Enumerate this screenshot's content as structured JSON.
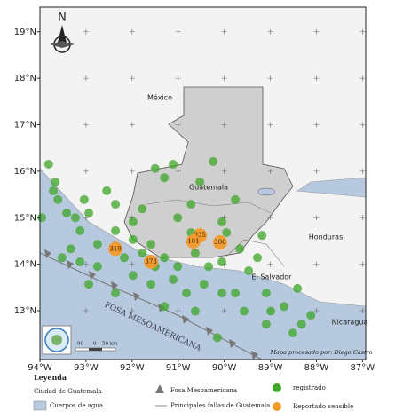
{
  "chart_data": {
    "type": "map",
    "xlim": [
      -94,
      -86.93
    ],
    "ylim": [
      11.95,
      19.53
    ],
    "xticks": [
      {
        "value": -94,
        "label": "94°W"
      },
      {
        "value": -93,
        "label": "93°W"
      },
      {
        "value": -92,
        "label": "92°W"
      },
      {
        "value": -91,
        "label": "91°W"
      },
      {
        "value": -90,
        "label": "90°W"
      },
      {
        "value": -89,
        "label": "89°W"
      },
      {
        "value": -88,
        "label": "88°W"
      },
      {
        "value": -87,
        "label": "87°W"
      }
    ],
    "yticks": [
      {
        "value": 13,
        "label": "13°N"
      },
      {
        "value": 14,
        "label": "14°N"
      },
      {
        "value": 15,
        "label": "15°N"
      },
      {
        "value": 16,
        "label": "16°N"
      },
      {
        "value": 17,
        "label": "17°N"
      },
      {
        "value": 18,
        "label": "18°N"
      },
      {
        "value": 19,
        "label": "19°N"
      }
    ],
    "series": [
      {
        "name": "registrado",
        "color": "#3fa62a",
        "x": [
          -93.81,
          -93.67,
          -93.71,
          -93.96,
          -93.42,
          -93.04,
          -92.94,
          -92.36,
          -92.55,
          -91.5,
          -91.3,
          -91.11,
          -90.24,
          -90.53,
          -91.78,
          -91.98,
          -91.01,
          -90.72,
          -90.05,
          -89.76,
          -89.95,
          -90.72,
          -93.13,
          -93.33,
          -92.75,
          -92.36,
          -93.52,
          -93.13,
          -92.75,
          -92.17,
          -91.78,
          -91.5,
          -91.3,
          -91.01,
          -90.63,
          -90.34,
          -90.05,
          -89.66,
          -89.28,
          -91.98,
          -91.59,
          -91.11,
          -90.82,
          -90.44,
          -90.05,
          -92.36,
          -92.94,
          -91.3,
          -90.63,
          -89.76,
          -89.57,
          -89.09,
          -88.99,
          -88.7,
          -88.41,
          -88.32,
          -88.12,
          -89.09,
          -90.15,
          -88.51,
          -89.47,
          -89.18,
          -91.98,
          -91.59,
          -93.61,
          -93.23
        ],
        "y": [
          16.15,
          15.77,
          15.58,
          15.0,
          15.1,
          15.39,
          15.1,
          15.29,
          15.58,
          16.06,
          15.86,
          16.15,
          16.21,
          15.77,
          15.19,
          14.91,
          15.0,
          15.29,
          14.91,
          15.39,
          14.68,
          14.68,
          14.72,
          14.33,
          14.43,
          14.72,
          14.14,
          14.05,
          13.95,
          14.14,
          14.24,
          13.95,
          14.14,
          13.95,
          14.24,
          13.95,
          14.05,
          14.33,
          14.14,
          13.76,
          13.57,
          13.67,
          13.38,
          13.57,
          13.38,
          13.38,
          13.57,
          13.09,
          12.99,
          13.38,
          12.99,
          13.38,
          12.99,
          13.09,
          13.48,
          12.71,
          12.9,
          12.71,
          12.42,
          12.52,
          13.86,
          14.62,
          14.53,
          14.43,
          15.39,
          15.0
        ]
      },
      {
        "name": "Reportado sensible",
        "color": "#f39a2b",
        "x": [
          -92.36,
          -91.59,
          -90.53,
          -90.67,
          -90.09
        ],
        "y": [
          14.33,
          14.05,
          14.62,
          14.49,
          14.47
        ],
        "values": [
          319,
          373,
          335,
          101,
          308
        ]
      }
    ]
  },
  "map_labels": {
    "north": "N",
    "places": [
      "México",
      "Guatemala",
      "Honduras",
      "El Salvador",
      "Nicaragua"
    ],
    "trench": "FOSA MESOAMERICANA",
    "credit": "Mapa procesado por: Diego Castro",
    "scale": [
      "90",
      "0",
      "50 km"
    ]
  },
  "legend": {
    "title": "Leyenda",
    "items": [
      "Ciudad de Guatemala",
      "Cuerpos de agua",
      "Fosa Mesoamericana",
      "Principales fallas de Guatemala"
    ]
  }
}
